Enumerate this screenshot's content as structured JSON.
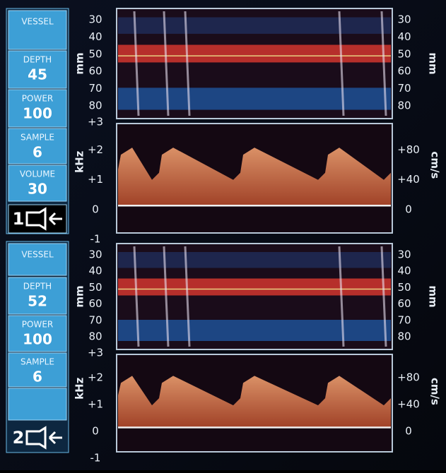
{
  "channels": [
    {
      "number": "1",
      "fields": [
        {
          "label": "VESSEL"
        },
        {
          "label": "DEPTH",
          "value": "45"
        },
        {
          "label": "POWER",
          "value": "100"
        },
        {
          "label": "SAMPLE",
          "value": "6"
        },
        {
          "label": "VOLUME",
          "value": "30"
        }
      ],
      "depth_axis": {
        "unit": "mm",
        "ticks": [
          "30",
          "40",
          "50",
          "60",
          "70",
          "80"
        ]
      },
      "frequency_axis": {
        "unit": "kHz",
        "ticks": [
          "+3",
          "+2",
          "+1",
          "0",
          "-1"
        ]
      },
      "velocity_axis": {
        "unit": "cm/s",
        "ticks": [
          "+80",
          "+40",
          "0"
        ]
      }
    },
    {
      "number": "2",
      "fields": [
        {
          "label": "VESSEL"
        },
        {
          "label": "DEPTH",
          "value": "52"
        },
        {
          "label": "POWER",
          "value": "100"
        },
        {
          "label": "SAMPLE",
          "value": "6"
        }
      ],
      "depth_axis": {
        "unit": "mm",
        "ticks": [
          "30",
          "40",
          "50",
          "60",
          "70",
          "80"
        ]
      },
      "frequency_axis": {
        "unit": "kHz",
        "ticks": [
          "+3",
          "+2",
          "+1",
          "0",
          "-1"
        ]
      },
      "velocity_axis": {
        "unit": "cm/s",
        "ticks": [
          "+80",
          "+40",
          "0"
        ]
      }
    }
  ]
}
